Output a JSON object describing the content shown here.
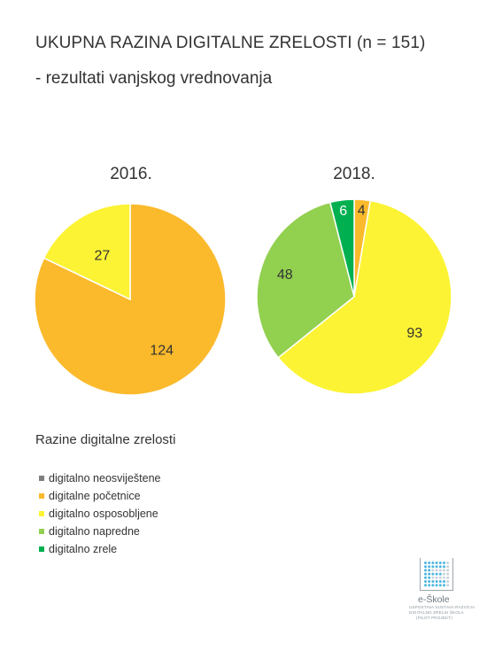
{
  "header": {
    "title": "UKUPNA RAZINA DIGITALNE ZRELOSTI (n = 151)",
    "subtitle": "- rezultati vanjskog vrednovanja"
  },
  "chart_data": [
    {
      "type": "pie",
      "title": "2016.",
      "slices": [
        {
          "label": "digitalne početnice",
          "value": 124,
          "color": "#FBBA2C"
        },
        {
          "label": "digitalno osposobljene",
          "value": 27,
          "color": "#FCF334"
        }
      ]
    },
    {
      "type": "pie",
      "title": "2018.",
      "slices": [
        {
          "label": "digitalne početnice",
          "value": 4,
          "color": "#FBBA2C"
        },
        {
          "label": "digitalno osposobljene",
          "value": 93,
          "color": "#FCF334"
        },
        {
          "label": "digitalno napredne",
          "value": 48,
          "color": "#92D050"
        },
        {
          "label": "digitalno zrele",
          "value": 6,
          "color": "#00B050"
        }
      ]
    }
  ],
  "legend": {
    "title": "Razine digitalne zrelosti",
    "placement": "bottom-left",
    "items": [
      {
        "label": "digitalno neosviještene",
        "color": "#7F7F7F"
      },
      {
        "label": "digitalne početnice",
        "color": "#FBBA2C"
      },
      {
        "label": "digitalno osposobljene",
        "color": "#FCF334"
      },
      {
        "label": "digitalno napredne",
        "color": "#92D050"
      },
      {
        "label": "digitalno zrele",
        "color": "#00B050"
      }
    ]
  },
  "logo": {
    "name": "e-Škole",
    "tagline_1": "USPOSTAVA SUSTAVA RAZVOJA",
    "tagline_2": "DIGITALNO ZRELIH ŠKOLA",
    "tagline_3": "(PILOT PROJEKT)"
  }
}
